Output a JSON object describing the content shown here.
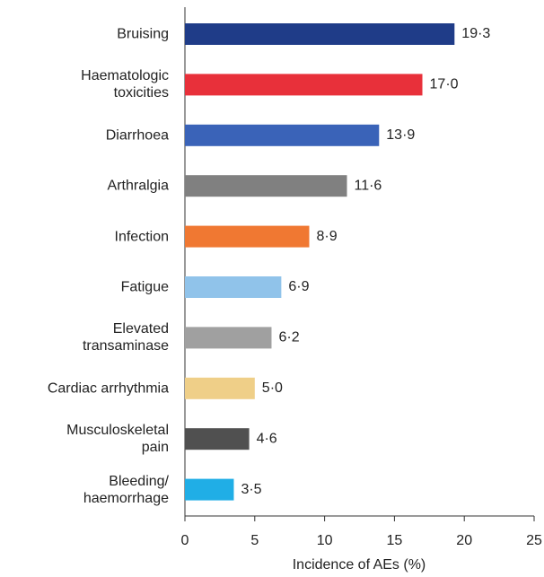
{
  "chart_data": {
    "type": "bar",
    "orientation": "horizontal",
    "categories": [
      "Bruising",
      "Haematologic\ntoxicities",
      "Diarrhoea",
      "Arthralgia",
      "Infection",
      "Fatigue",
      "Elevated\ntransaminase",
      "Cardiac arrhythmia",
      "Musculoskeletal\npain",
      "Bleeding/\nhaemorrhage"
    ],
    "values": [
      19.3,
      17.0,
      13.9,
      11.6,
      8.9,
      6.9,
      6.2,
      5.0,
      4.6,
      3.5
    ],
    "value_labels": [
      "19·3",
      "17·0",
      "13·9",
      "11·6",
      "8·9",
      "6·9",
      "6·2",
      "5·0",
      "4·6",
      "3·5"
    ],
    "colors": [
      "#1f3c88",
      "#e8303a",
      "#3a63b8",
      "#808080",
      "#f07832",
      "#90c3ea",
      "#a0a0a0",
      "#efcf88",
      "#505050",
      "#20aee6"
    ],
    "xlabel": "Incidence of AEs (%)",
    "xlim": [
      0,
      25
    ],
    "xticks": [
      0,
      5,
      10,
      15,
      20,
      25
    ]
  }
}
